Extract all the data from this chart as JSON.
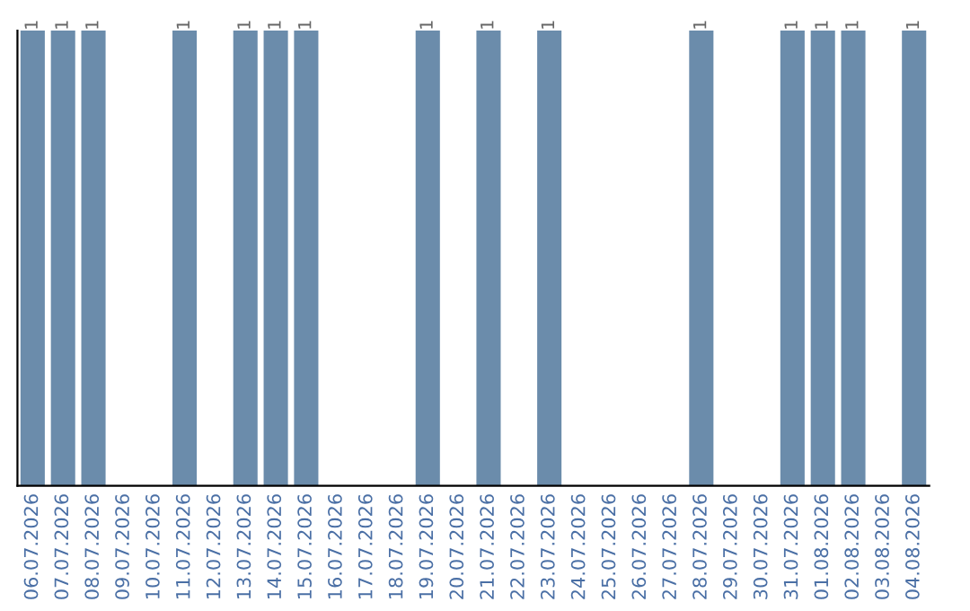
{
  "chart_data": {
    "type": "bar",
    "categories": [
      "06.07.2026",
      "07.07.2026",
      "08.07.2026",
      "09.07.2026",
      "10.07.2026",
      "11.07.2026",
      "12.07.2026",
      "13.07.2026",
      "14.07.2026",
      "15.07.2026",
      "16.07.2026",
      "17.07.2026",
      "18.07.2026",
      "19.07.2026",
      "20.07.2026",
      "21.07.2026",
      "22.07.2026",
      "23.07.2026",
      "24.07.2026",
      "25.07.2026",
      "26.07.2026",
      "27.07.2026",
      "28.07.2026",
      "29.07.2026",
      "30.07.2026",
      "31.07.2026",
      "01.08.2026",
      "02.08.2026",
      "03.08.2026",
      "04.08.2026"
    ],
    "values": [
      1,
      1,
      1,
      0,
      0,
      1,
      0,
      1,
      1,
      1,
      0,
      0,
      0,
      1,
      0,
      1,
      0,
      1,
      0,
      0,
      0,
      0,
      1,
      0,
      0,
      1,
      1,
      1,
      0,
      1
    ],
    "value_labels": [
      "1",
      "1",
      "1",
      null,
      null,
      "1",
      null,
      "1",
      "1",
      "1",
      null,
      null,
      null,
      "1",
      null,
      "1",
      null,
      "1",
      null,
      null,
      null,
      null,
      "1",
      null,
      null,
      "1",
      "1",
      "1",
      null,
      "1"
    ],
    "color": "#6b8cab",
    "tick_labels": "x",
    "grid": false,
    "legend": false
  }
}
